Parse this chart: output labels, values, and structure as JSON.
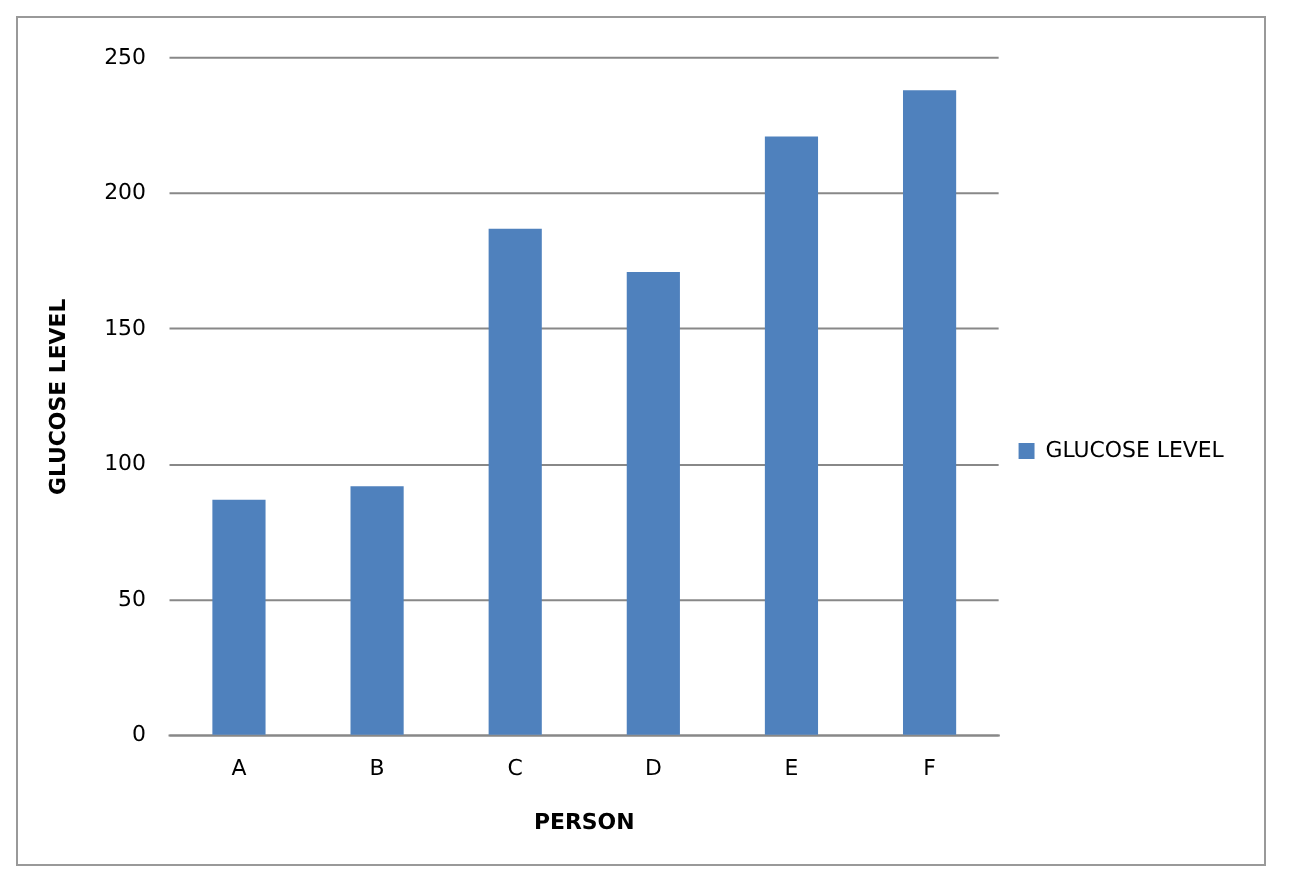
{
  "chart_data": {
    "type": "bar",
    "xlabel": "PERSON",
    "ylabel": "GLUCOSE LEVEL",
    "categories": [
      "A",
      "B",
      "C",
      "D",
      "E",
      "F"
    ],
    "series": [
      {
        "name": "GLUCOSE LEVEL",
        "color": "#4f81bd",
        "values": [
          87,
          92,
          187,
          171,
          221,
          238
        ]
      }
    ],
    "ylim": [
      0,
      250
    ],
    "yticks": [
      0,
      50,
      100,
      150,
      200,
      250
    ],
    "grid": "y",
    "legend": "right"
  }
}
